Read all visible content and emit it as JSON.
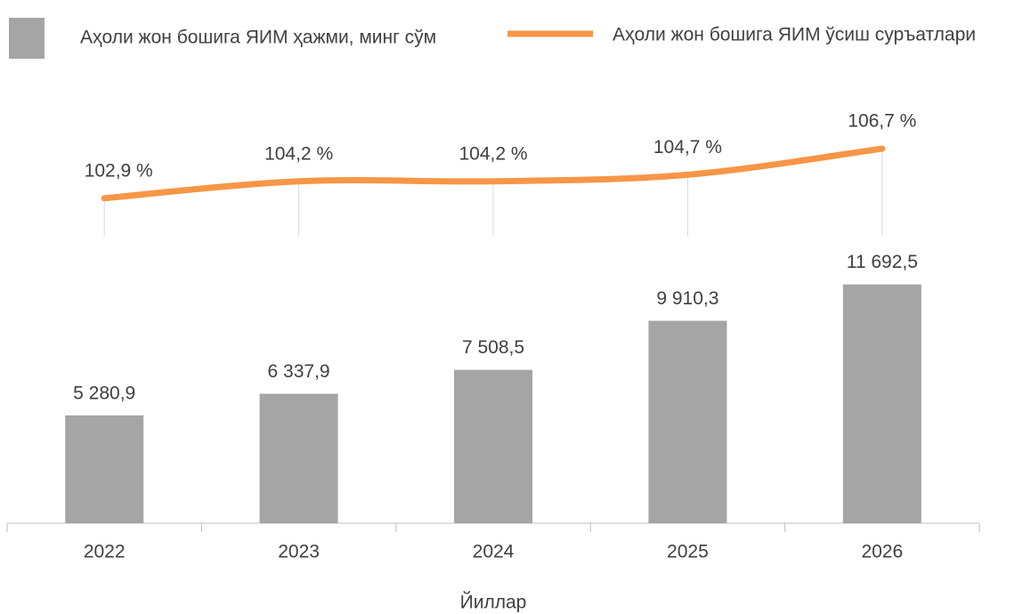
{
  "chart_data": {
    "type": "bar",
    "x_label": "Йиллар",
    "categories": [
      "2022",
      "2023",
      "2024",
      "2025",
      "2026"
    ],
    "series": [
      {
        "name": "Аҳоли жон бошига ЯИМ ҳажми, минг сўм",
        "type": "bar",
        "color": "#a5a5a5",
        "values": [
          5280.9,
          6337.9,
          7508.5,
          9910.3,
          11692.5
        ],
        "value_labels": [
          "5 280,9",
          "6 337,9",
          "7 508,5",
          "9 910,3",
          "11 692,5"
        ]
      },
      {
        "name": "Аҳоли жон бошига ЯИМ ўсиш суръатлари",
        "type": "line",
        "axis": "y2",
        "color": "#f79646",
        "values": [
          102.9,
          104.2,
          104.2,
          104.7,
          106.7
        ],
        "value_labels": [
          "102,9 %",
          "104,2 %",
          "104,2 %",
          "104,7 %",
          "106,7 %"
        ]
      }
    ],
    "ylim": [
      0,
      23000
    ],
    "y2lim": [
      78,
      114
    ]
  }
}
